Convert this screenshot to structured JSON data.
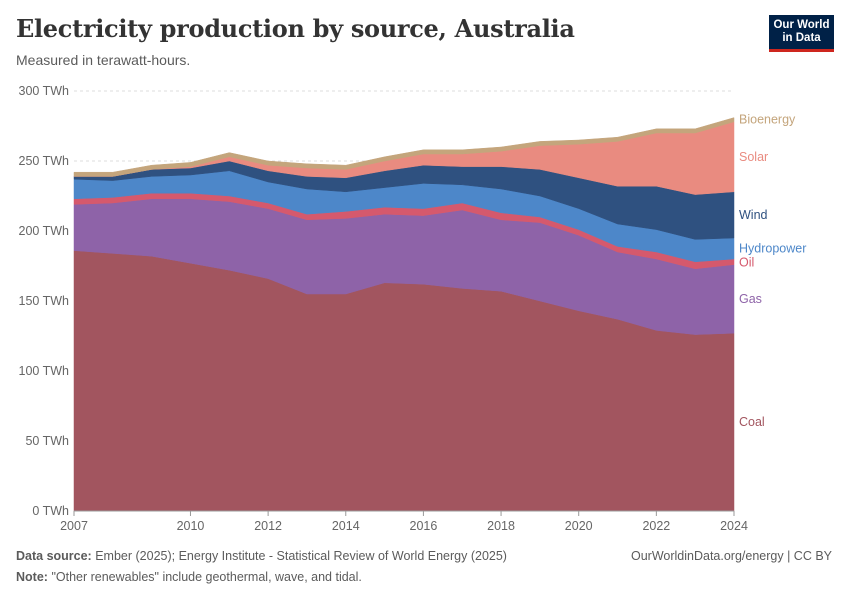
{
  "header": {
    "title": "Electricity production by source, Australia",
    "subtitle": "Measured in terawatt-hours.",
    "logo_line1": "Our World",
    "logo_line2": "in Data"
  },
  "footer": {
    "source_label": "Data source:",
    "source_text": "Ember (2025); Energy Institute - Statistical Review of World Energy (2025)",
    "note_label": "Note:",
    "note_text": "\"Other renewables\" include geothermal, wave, and tidal.",
    "credit": "OurWorldinData.org/energy | CC BY"
  },
  "chart_data": {
    "type": "area",
    "stacked": true,
    "x": [
      2007,
      2008,
      2009,
      2010,
      2011,
      2012,
      2013,
      2014,
      2015,
      2016,
      2017,
      2018,
      2019,
      2020,
      2021,
      2022,
      2023,
      2024
    ],
    "x_ticks": [
      2007,
      2010,
      2012,
      2014,
      2016,
      2018,
      2020,
      2022,
      2024
    ],
    "x_tick_labels": [
      "2007",
      "2010",
      "2012",
      "2014",
      "2016",
      "2018",
      "2020",
      "2022",
      "2024"
    ],
    "y_ticks": [
      0,
      50,
      100,
      150,
      200,
      250,
      300
    ],
    "y_tick_labels": [
      "0 TWh",
      "50 TWh",
      "100 TWh",
      "150 TWh",
      "200 TWh",
      "250 TWh",
      "300 TWh"
    ],
    "ylim": [
      0,
      300
    ],
    "grid": true,
    "legend": "right, inline labels",
    "series": [
      {
        "name": "Coal",
        "color": "#a2555f",
        "values": [
          186,
          184,
          182,
          177,
          172,
          166,
          155,
          155,
          163,
          162,
          159,
          157,
          150,
          143,
          137,
          129,
          126,
          127
        ]
      },
      {
        "name": "Gas",
        "color": "#8e63a8",
        "values": [
          33,
          36,
          41,
          46,
          49,
          50,
          53,
          54,
          49,
          49,
          56,
          51,
          56,
          54,
          48,
          51,
          47,
          49
        ]
      },
      {
        "name": "Oil",
        "color": "#d5596d",
        "values": [
          4,
          4,
          4,
          4,
          4,
          4,
          4,
          5,
          5,
          5,
          5,
          5,
          4,
          4,
          4,
          5,
          5,
          4
        ]
      },
      {
        "name": "Hydropower",
        "color": "#4d87c9",
        "values": [
          14,
          12,
          12,
          13,
          18,
          15,
          18,
          14,
          14,
          18,
          13,
          17,
          15,
          15,
          16,
          16,
          16,
          15
        ]
      },
      {
        "name": "Wind",
        "color": "#2f5180",
        "values": [
          2,
          3,
          5,
          5,
          7,
          8,
          9,
          10,
          12,
          13,
          13,
          16,
          19,
          22,
          27,
          31,
          32,
          33
        ]
      },
      {
        "name": "Solar",
        "color": "#e98b80",
        "values": [
          0,
          0,
          0,
          1,
          3,
          4,
          6,
          6,
          7,
          8,
          9,
          11,
          17,
          24,
          32,
          38,
          44,
          50
        ]
      },
      {
        "name": "Bioenergy",
        "color": "#c4a57c",
        "values": [
          3,
          3,
          3,
          3,
          3,
          3,
          3,
          3,
          3,
          3,
          3,
          3,
          3,
          3,
          3,
          3,
          3,
          3
        ]
      }
    ]
  }
}
